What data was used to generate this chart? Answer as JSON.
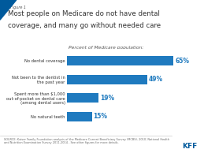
{
  "figure_label": "Figure 1",
  "title_line1": "Most people on Medicare do not have dental",
  "title_line2": "coverage, and many go without needed care",
  "subtitle": "Percent of Medicare population:",
  "categories": [
    "No dental coverage",
    "Not been to the dentist in\nthe past year",
    "Spent more than $1,000\nout-of-pocket on dental care\n(among dental users)",
    "No natural teeth"
  ],
  "values": [
    65,
    49,
    19,
    15
  ],
  "bar_color": "#1f7abf",
  "background_color": "#ffffff",
  "title_color": "#333333",
  "subtitle_color": "#555555",
  "source_text": "SOURCE: Kaiser Family Foundation analysis of the Medicare Current Beneficiary Survey (MCBS), 2010; National Health\nand Nutrition Examination Survey 2011-2014 - See other figures for more details.",
  "accent_color": "#005a9c",
  "xlim": [
    0,
    75
  ]
}
